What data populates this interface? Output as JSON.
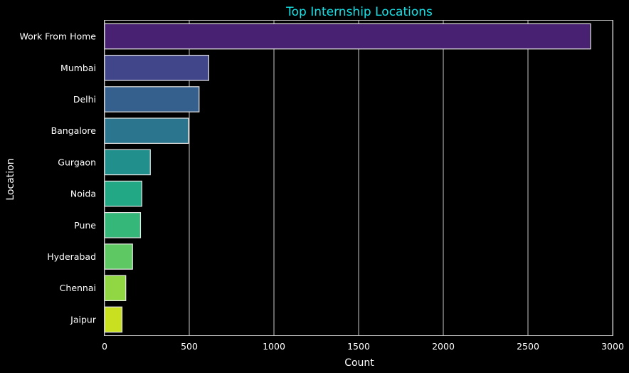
{
  "chart_data": {
    "type": "bar",
    "orientation": "horizontal",
    "title": "Top Internship Locations",
    "xlabel": "Count",
    "ylabel": "Location",
    "categories": [
      "Work From Home",
      "Mumbai",
      "Delhi",
      "Bangalore",
      "Gurgaon",
      "Noida",
      "Pune",
      "Hyderabad",
      "Chennai",
      "Jaipur"
    ],
    "values": [
      2870,
      615,
      558,
      495,
      270,
      220,
      212,
      165,
      125,
      103
    ],
    "xlim": [
      0,
      3000
    ],
    "xticks": [
      "0",
      "500",
      "1000",
      "1500",
      "2000",
      "2500",
      "3000"
    ],
    "grid": "vertical",
    "bar_colors": [
      "#482172",
      "#41458a",
      "#355f8d",
      "#2b758e",
      "#21908c",
      "#22a884",
      "#35b779",
      "#5ec962",
      "#90d743",
      "#c8e020"
    ],
    "colors": {
      "background": "#000000",
      "text": "#ffffff",
      "title": "#17e1e6",
      "grid": "#c8c8c8",
      "bar_edge": "#e6e6e6"
    }
  }
}
